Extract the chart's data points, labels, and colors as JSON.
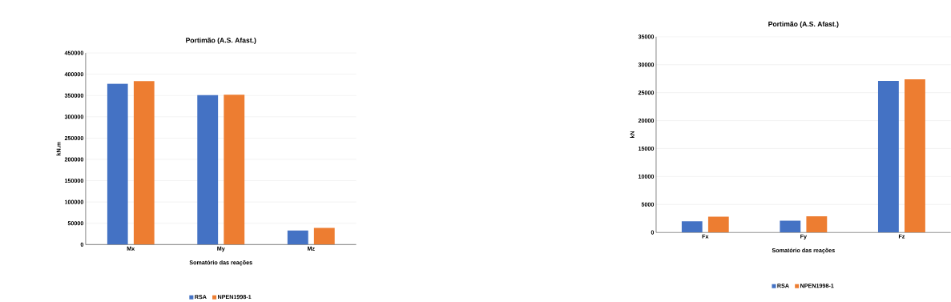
{
  "chart_data": [
    {
      "type": "bar",
      "title": "Portimão (A.S. Afast.)",
      "xlabel": "Somatório das reações",
      "ylabel": "kN.m",
      "categories": [
        "Mx",
        "My",
        "Mz"
      ],
      "series": [
        {
          "name": "RSA",
          "color": "#4472c4",
          "values": [
            378000,
            351000,
            33000
          ]
        },
        {
          "name": "NPEN1998-1",
          "color": "#ed7d31",
          "values": [
            384000,
            352000,
            39000
          ]
        }
      ],
      "ylim": [
        0,
        450000
      ],
      "yticks": [
        0,
        50000,
        100000,
        150000,
        200000,
        250000,
        300000,
        350000,
        400000,
        450000
      ],
      "grid": "y",
      "legend": "bottom"
    },
    {
      "type": "bar",
      "title": "Portimão (A.S. Afast.)",
      "xlabel": "Somatório das reações",
      "ylabel": "kN",
      "categories": [
        "Fx",
        "Fy",
        "Fz"
      ],
      "series": [
        {
          "name": "RSA",
          "color": "#4472c4",
          "values": [
            2000,
            2100,
            27100
          ]
        },
        {
          "name": "NPEN1998-1",
          "color": "#ed7d31",
          "values": [
            2800,
            2900,
            27400
          ]
        }
      ],
      "ylim": [
        0,
        35000
      ],
      "yticks": [
        0,
        5000,
        10000,
        15000,
        20000,
        25000,
        30000,
        35000
      ],
      "grid": "y",
      "legend": "bottom"
    }
  ]
}
